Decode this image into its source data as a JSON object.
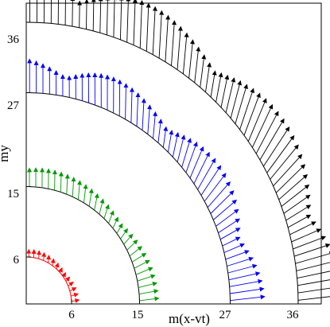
{
  "chart_data": {
    "type": "vector-field",
    "title": "",
    "xlabel": "m(x-vt)",
    "ylabel": "my",
    "xlim": [
      0,
      40
    ],
    "ylim": [
      0,
      40
    ],
    "x_ticks": [
      6,
      15,
      27,
      36
    ],
    "y_ticks": [
      6,
      15,
      27,
      36
    ],
    "x_tick_labels": [
      "6",
      "15",
      "27",
      "36"
    ],
    "y_tick_labels": [
      "6",
      "15",
      "27",
      "36"
    ],
    "grid": false,
    "legend": "none",
    "series": [
      {
        "radius": 6,
        "color": "#ff0000",
        "curve_color": "#ff0000",
        "arrow_count": 14
      },
      {
        "radius": 15,
        "color": "#009900",
        "curve_color": "#000000",
        "arrow_count": 28
      },
      {
        "radius": 27,
        "color": "#0000ff",
        "curve_color": "#000000",
        "arrow_count": 48
      },
      {
        "radius": 36,
        "color": "#000000",
        "curve_color": "#000000",
        "arrow_count": 60
      }
    ]
  }
}
